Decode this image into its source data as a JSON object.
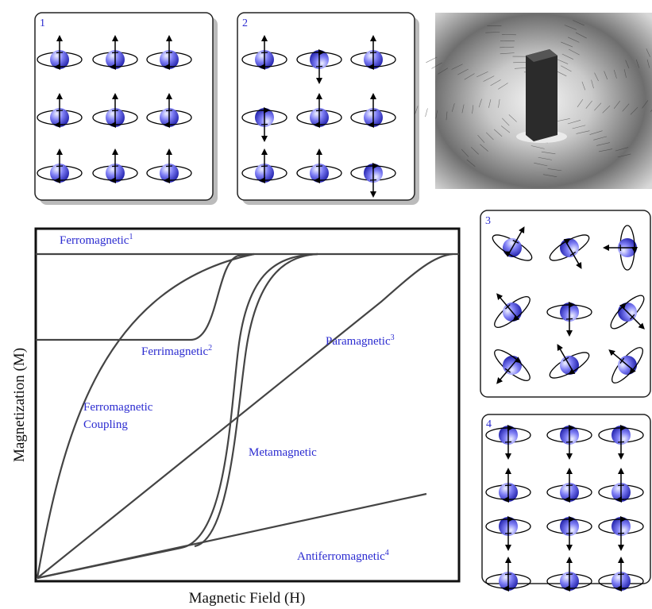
{
  "panels": [
    {
      "label": "1"
    },
    {
      "label": "2"
    },
    {
      "label": "3"
    },
    {
      "label": "4"
    }
  ],
  "graph": {
    "y_axis_label": "Magnetization (M)",
    "x_axis_label": "Magnetic Field (H)",
    "curves": [
      {
        "name": "Ferromagnetic",
        "superscript": "1"
      },
      {
        "name": "Ferrimagnetic",
        "superscript": "2"
      },
      {
        "name": "Paramagnetic",
        "superscript": "3"
      },
      {
        "name": "Antiferromagnetic",
        "superscript": "4"
      }
    ],
    "coupling_label": [
      "Ferromagnetic",
      "Coupling"
    ],
    "metamagnetic_label": "Metamagnetic"
  }
}
